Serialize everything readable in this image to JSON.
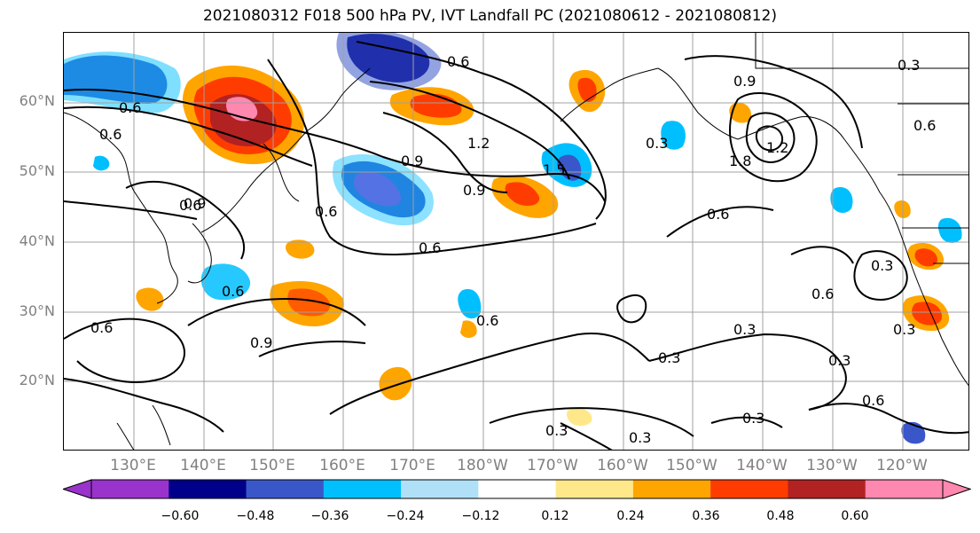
{
  "title": "2021080312 F018 500 hPa PV, IVT Landfall PC (2021080612 - 2021080812)",
  "map": {
    "lat_ticks": [
      "60°N",
      "50°N",
      "40°N",
      "30°N",
      "20°N"
    ],
    "lon_ticks": [
      "130°E",
      "140°E",
      "150°E",
      "160°E",
      "170°E",
      "180°W",
      "170°W",
      "160°W",
      "150°W",
      "140°W",
      "130°W",
      "120°W"
    ],
    "contour_labels": [
      "0.6",
      "0.6",
      "0.6",
      "0.6",
      "0.6",
      "0.6",
      "0.6",
      "0.6",
      "0.6",
      "0.6",
      "0.6",
      "0.6",
      "0.6",
      "0.9",
      "0.9",
      "0.9",
      "0.9",
      "0.9",
      "1.2",
      "1.2",
      "1.5",
      "1.8",
      "0.3",
      "0.3",
      "0.3",
      "0.3",
      "0.3",
      "0.3",
      "0.3",
      "0.3",
      "0.3",
      "0.3"
    ]
  },
  "colorbar": {
    "colors": [
      "#9933cc",
      "#00008b",
      "#3a57c9",
      "#00bfff",
      "#b0e0f8",
      "#ffffff",
      "#ffe88a",
      "#ffa500",
      "#ff3c00",
      "#b22222",
      "#ff88b0"
    ],
    "tick_labels": [
      "−0.60",
      "−0.48",
      "−0.36",
      "−0.24",
      "−0.12",
      "0.12",
      "0.24",
      "0.36",
      "0.48",
      "0.60"
    ]
  }
}
